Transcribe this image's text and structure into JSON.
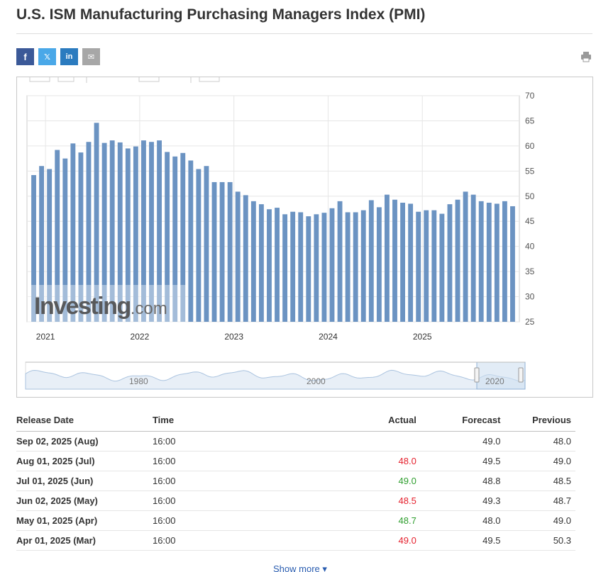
{
  "page": {
    "title": "U.S. ISM Manufacturing Purchasing Managers Index (PMI)",
    "show_more": "Show more ▾"
  },
  "share": {
    "facebook": "f",
    "twitter": "𝕏",
    "linkedin": "in",
    "email": "✉",
    "icons": [
      "facebook-icon",
      "twitter-icon",
      "linkedin-icon",
      "email-icon",
      "print-icon"
    ]
  },
  "colors": {
    "bar": "#6b93c2",
    "bar_stroke": "#5079ab",
    "actual_down": "#e5202d",
    "actual_up": "#2e9e2e",
    "navigator_fill": "#d6e4f2",
    "navigator_line": "#8fb0d6"
  },
  "chart_data": {
    "type": "bar",
    "title": "",
    "xlabel": "",
    "ylabel": "",
    "ylim": [
      25,
      70
    ],
    "yticks": [
      25,
      30,
      35,
      40,
      45,
      50,
      55,
      60,
      65,
      70
    ],
    "grid": true,
    "year_labels": [
      "2021",
      "2022",
      "2023",
      "2024",
      "2025"
    ],
    "year_label_index": [
      2,
      14,
      26,
      38,
      50
    ],
    "values": [
      54.2,
      56.0,
      55.4,
      59.2,
      57.5,
      60.5,
      58.7,
      60.8,
      64.6,
      60.6,
      61.1,
      60.7,
      59.5,
      59.9,
      61.1,
      60.8,
      61.1,
      58.8,
      57.9,
      58.6,
      57.1,
      55.4,
      56.0,
      52.8,
      52.8,
      52.8,
      50.9,
      50.2,
      49.0,
      48.4,
      47.4,
      47.7,
      46.4,
      46.9,
      46.8,
      46.0,
      46.4,
      46.7,
      47.6,
      49.0,
      46.8,
      46.8,
      47.2,
      49.2,
      47.8,
      50.3,
      49.3,
      48.7,
      48.5,
      46.9,
      47.2,
      47.2,
      46.5,
      48.4,
      49.3,
      50.9,
      50.3,
      49.0,
      48.7,
      48.5,
      49.0,
      48.0
    ],
    "watermark": "Investing",
    "watermark_suffix": ".com",
    "navigator": {
      "labels": [
        "1980",
        "2000",
        "2020"
      ]
    }
  },
  "table": {
    "headers": {
      "release_date": "Release Date",
      "time": "Time",
      "actual": "Actual",
      "forecast": "Forecast",
      "previous": "Previous"
    },
    "rows": [
      {
        "date": "Sep 02, 2025 (Aug)",
        "time": "16:00",
        "actual": "",
        "actual_dir": "",
        "forecast": "49.0",
        "previous": "48.0"
      },
      {
        "date": "Aug 01, 2025 (Jul)",
        "time": "16:00",
        "actual": "48.0",
        "actual_dir": "down",
        "forecast": "49.5",
        "previous": "49.0"
      },
      {
        "date": "Jul 01, 2025 (Jun)",
        "time": "16:00",
        "actual": "49.0",
        "actual_dir": "up",
        "forecast": "48.8",
        "previous": "48.5"
      },
      {
        "date": "Jun 02, 2025 (May)",
        "time": "16:00",
        "actual": "48.5",
        "actual_dir": "down",
        "forecast": "49.3",
        "previous": "48.7"
      },
      {
        "date": "May 01, 2025 (Apr)",
        "time": "16:00",
        "actual": "48.7",
        "actual_dir": "up",
        "forecast": "48.0",
        "previous": "49.0"
      },
      {
        "date": "Apr 01, 2025 (Mar)",
        "time": "16:00",
        "actual": "49.0",
        "actual_dir": "down",
        "forecast": "49.5",
        "previous": "50.3"
      }
    ]
  }
}
